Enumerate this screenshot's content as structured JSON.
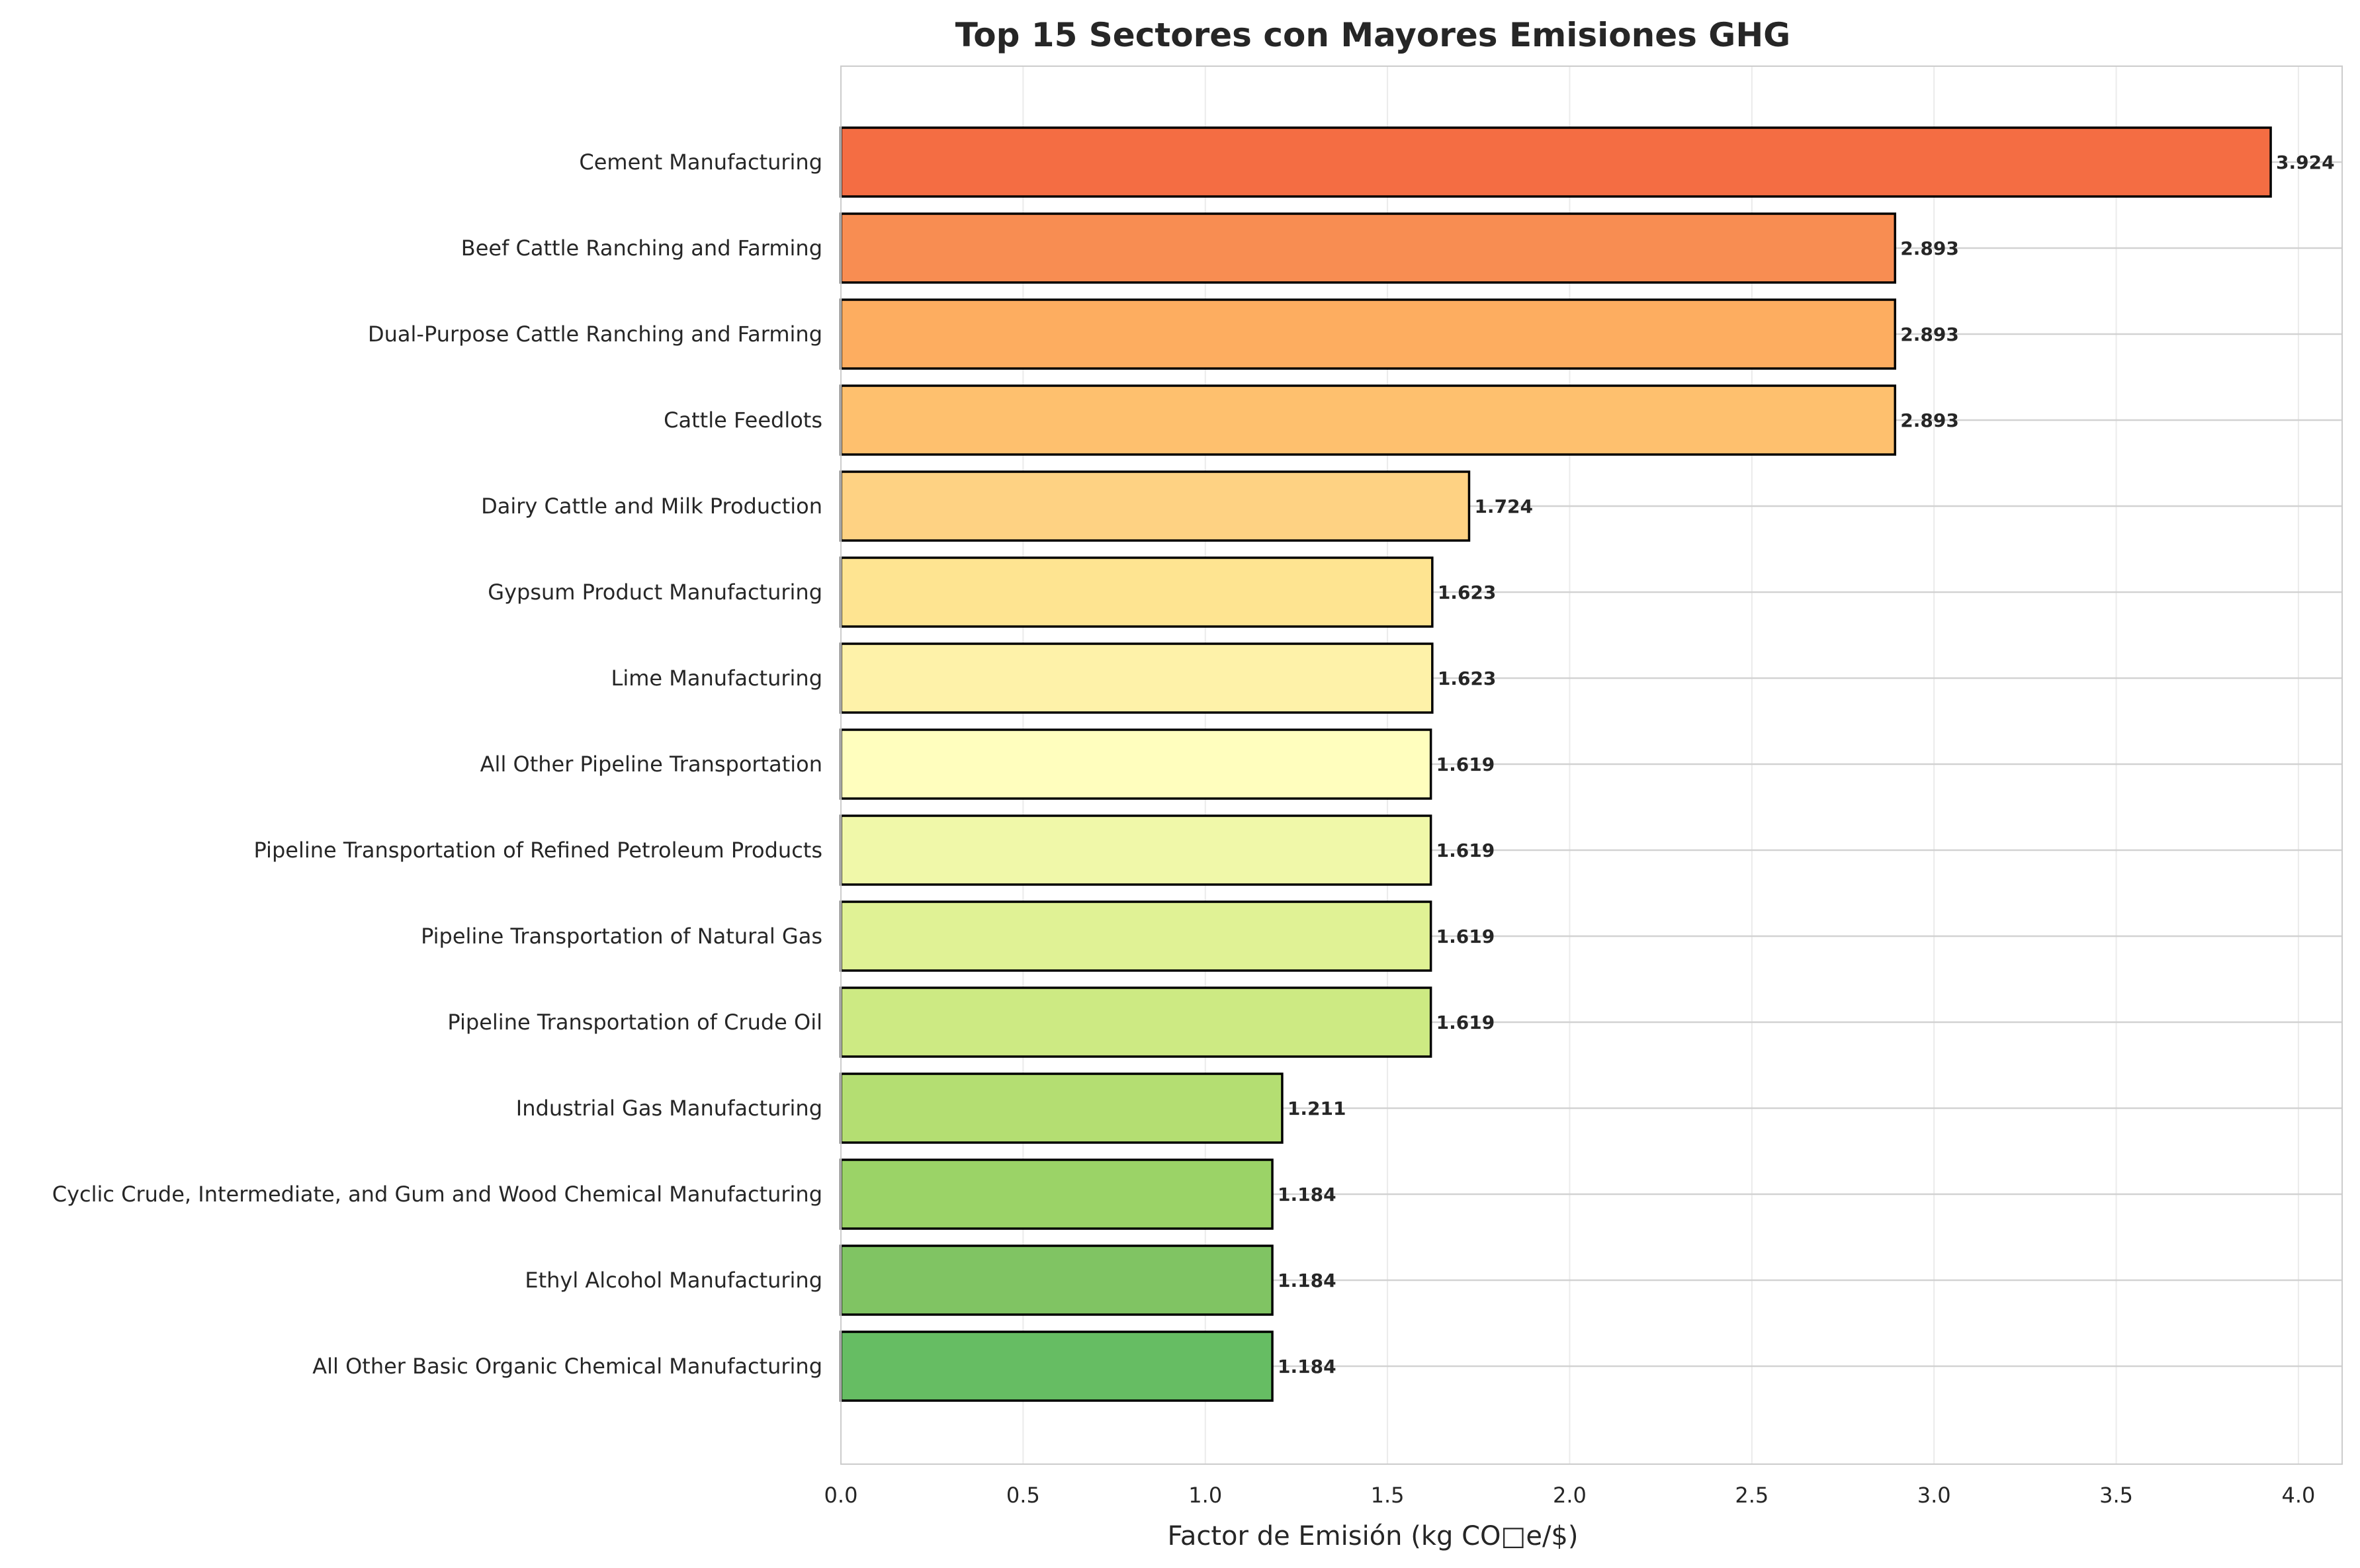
{
  "chart_data": {
    "type": "bar",
    "orientation": "horizontal",
    "title": "Top 15 Sectores con Mayores Emisiones GHG",
    "xlabel": "Factor de Emisión (kg CO□e/$)",
    "ylabel": "",
    "xlim": [
      0,
      4.12
    ],
    "xticks": [
      "0.0",
      "0.5",
      "1.0",
      "1.5",
      "2.0",
      "2.5",
      "3.0",
      "3.5",
      "4.0"
    ],
    "grid": true,
    "categories": [
      "Cement Manufacturing",
      "Beef Cattle Ranching and Farming",
      "Dual-Purpose Cattle Ranching and Farming",
      "Cattle Feedlots",
      "Dairy Cattle and Milk Production",
      "Gypsum Product Manufacturing",
      "Lime Manufacturing",
      "All Other Pipeline Transportation",
      "Pipeline Transportation of Refined Petroleum Products",
      "Pipeline Transportation of Natural Gas",
      "Pipeline Transportation of Crude Oil",
      "Industrial Gas Manufacturing",
      "Cyclic Crude, Intermediate, and Gum and Wood Chemical Manufacturing",
      "Ethyl Alcohol Manufacturing",
      "All Other Basic Organic Chemical Manufacturing"
    ],
    "values": [
      3.924,
      2.893,
      2.893,
      2.893,
      1.724,
      1.623,
      1.623,
      1.619,
      1.619,
      1.619,
      1.619,
      1.211,
      1.184,
      1.184,
      1.184
    ],
    "value_labels": [
      "3.924",
      "2.893",
      "2.893",
      "2.893",
      "1.724",
      "1.623",
      "1.623",
      "1.619",
      "1.619",
      "1.619",
      "1.619",
      "1.211",
      "1.184",
      "1.184",
      "1.184"
    ],
    "colors": [
      "#f46d43",
      "#f88d52",
      "#fdad60",
      "#fec06e",
      "#fed283",
      "#fee491",
      "#fef2a9",
      "#fffebe",
      "#f0f8a9",
      "#e0f295",
      "#cdea83",
      "#b4de72",
      "#9bd367",
      "#80c463",
      "#66bd63"
    ]
  }
}
